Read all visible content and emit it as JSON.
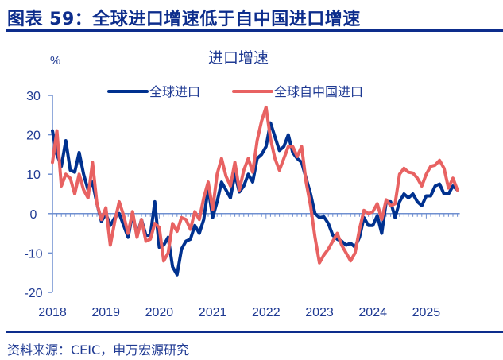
{
  "figure_title": "图表 59：全球进口增速低于自中国进口增速",
  "source": "资料来源：CEIC，申万宏源研究",
  "colors": {
    "global_imports": "#00318f",
    "global_imports_from_china": "#e86262",
    "text": "#1f3a93",
    "rule": "#0d2d8c"
  },
  "chart_data": {
    "type": "line",
    "title": "进口增速",
    "ylabel": "%",
    "xlabel": "",
    "ylim": [
      -20,
      30
    ],
    "yticks": [
      "30",
      "20",
      "10",
      "0",
      "-10",
      "-20"
    ],
    "x_start": "2018-01",
    "x_frequency": "monthly",
    "xtick_labels": [
      "2018",
      "2019",
      "2020",
      "2021",
      "2022",
      "2023",
      "2024",
      "2025"
    ],
    "legend_position": "top-center",
    "grid": false,
    "series": [
      {
        "name": "全球进口",
        "color": "#00318f",
        "values": [
          21,
          15,
          12,
          18.5,
          11,
          10.5,
          15.5,
          10,
          6,
          8,
          2.5,
          -2,
          0,
          -3,
          -1,
          0,
          -3,
          -6,
          0,
          -5.5,
          -1.5,
          -5.5,
          -5.5,
          3,
          -8.5,
          -8,
          -6,
          -13.5,
          -15.5,
          -9,
          -7,
          -6.5,
          -3,
          -5,
          -1.5,
          6.5,
          -1,
          3,
          8,
          6,
          4,
          10,
          5.5,
          7,
          10,
          8,
          14,
          15,
          17,
          23,
          19.5,
          16,
          17,
          20,
          15.5,
          14,
          13,
          9,
          5,
          0,
          -1,
          -0.8,
          -2.5,
          -5.5,
          -6.5,
          -7,
          -8,
          -7.5,
          -8.5,
          -6,
          -1,
          -3,
          -3,
          -0.5,
          -5,
          3,
          3,
          -1,
          3,
          5,
          4,
          5,
          3,
          2,
          4.5,
          4.5,
          7,
          7.5,
          5,
          5,
          7,
          6
        ]
      },
      {
        "name": "全球自中国进口",
        "color": "#e86262",
        "values": [
          13,
          21,
          7,
          10,
          9,
          5,
          10,
          6,
          4,
          13,
          2.5,
          -1.5,
          1.5,
          -8,
          -2,
          3,
          -0.5,
          -5,
          0.5,
          -6,
          -1.5,
          -7,
          -6.5,
          -2.5,
          -3.5,
          -12,
          -10,
          -2.5,
          -4.5,
          -1,
          -1.5,
          -4,
          0.5,
          -1.5,
          4,
          8,
          1,
          10,
          14,
          9.5,
          7,
          13,
          6,
          11,
          14,
          10.5,
          18.5,
          23.5,
          27,
          19,
          14,
          11,
          14,
          17,
          17,
          14.5,
          17,
          8,
          2,
          -6,
          -12.5,
          -10.5,
          -9,
          -7,
          -5,
          -8,
          -10,
          -12,
          -10,
          -4,
          0.8,
          0,
          0.5,
          2.5,
          -1.5,
          3.5,
          2,
          2.5,
          10,
          11.5,
          10.5,
          10.3,
          9,
          7,
          10,
          12,
          12.3,
          13.5,
          11.5,
          6.5,
          9,
          6
        ]
      }
    ]
  }
}
